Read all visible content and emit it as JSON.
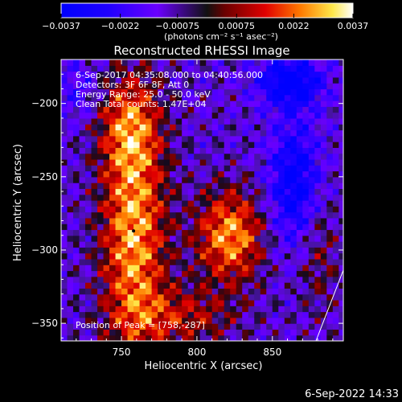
{
  "chart_data": {
    "type": "heatmap",
    "title": "Reconstructed RHESSI Image",
    "xlabel": "Heliocentric X (arcsec)",
    "ylabel": "Heliocentric Y (arcsec)",
    "xlim": [
      710,
      897
    ],
    "ylim": [
      -362,
      -170
    ],
    "xticks": [
      750,
      800,
      850
    ],
    "yticks": [
      -200,
      -250,
      -300,
      -350
    ],
    "colorbar": {
      "ticks": [
        "-0.0037",
        "-0.0022",
        "-0.00075",
        "0.00075",
        "0.0022",
        "0.0037"
      ],
      "units": "(photons cm⁻² s⁻¹ asec⁻²)",
      "range": [
        -0.0037,
        0.0037
      ]
    },
    "info_lines": [
      "6-Sep-2017 04:35:08.000 to 04:40:56.000",
      "Detectors: 3F 6F 8F, Att 0",
      "Energy Range: 25.0 - 50.0 keV",
      "Clean     Total counts: 1.47E+04"
    ],
    "peak_text": "Position of Peak = [758,-287]",
    "peak_position": [
      758,
      -287
    ],
    "sources": [
      {
        "x": 758,
        "y": -287,
        "sigx": 15,
        "sigy": 60,
        "amp": 1.0
      },
      {
        "x": 755,
        "y": -215,
        "sigx": 14,
        "sigy": 22,
        "amp": 0.55
      },
      {
        "x": 822,
        "y": -290,
        "sigx": 16,
        "sigy": 22,
        "amp": 0.95
      },
      {
        "x": 790,
        "y": -345,
        "sigx": 25,
        "sigy": 14,
        "amp": 0.5
      },
      {
        "x": 880,
        "y": -300,
        "sigx": 10,
        "sigy": 30,
        "amp": 0.35
      },
      {
        "x": 862,
        "y": -185,
        "sigx": 15,
        "sigy": 12,
        "amp": -0.9
      },
      {
        "x": 865,
        "y": -255,
        "sigx": 12,
        "sigy": 30,
        "amp": -0.8
      },
      {
        "x": 720,
        "y": -190,
        "sigx": 10,
        "sigy": 15,
        "amp": -0.3
      }
    ]
  },
  "footer": {
    "date": "6-Sep-2022 14:33"
  }
}
